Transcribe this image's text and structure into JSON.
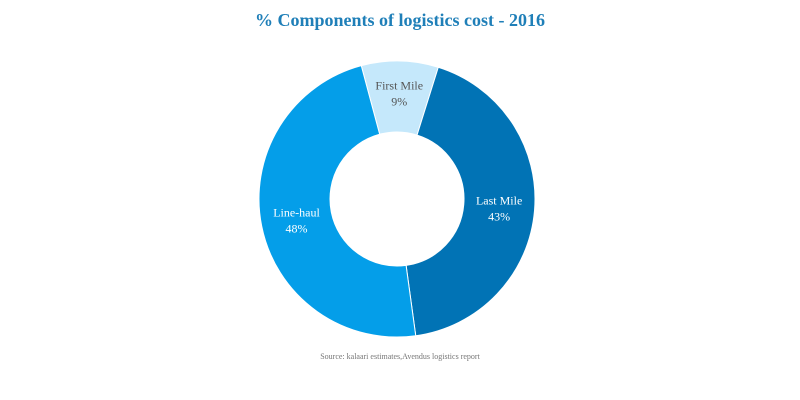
{
  "chart_data": {
    "type": "pie",
    "title": "% Components of logistics cost - 2016",
    "donut": true,
    "slices": [
      {
        "name": "First Mile",
        "label": "First Mile",
        "value": 9,
        "display": "9%",
        "color": "#c5e8fb",
        "text_color": "#555555"
      },
      {
        "name": "Last Mile",
        "label": "Last Mile",
        "value": 43,
        "display": "43%",
        "color": "#0173b5",
        "text_color": "#ffffff"
      },
      {
        "name": "Line-haul",
        "label": "Line-haul",
        "value": 48,
        "display": "48%",
        "color": "#049ee9",
        "text_color": "#ffffff"
      }
    ],
    "source": "Source:  kalaari  estimates,Avendus logistics report"
  }
}
